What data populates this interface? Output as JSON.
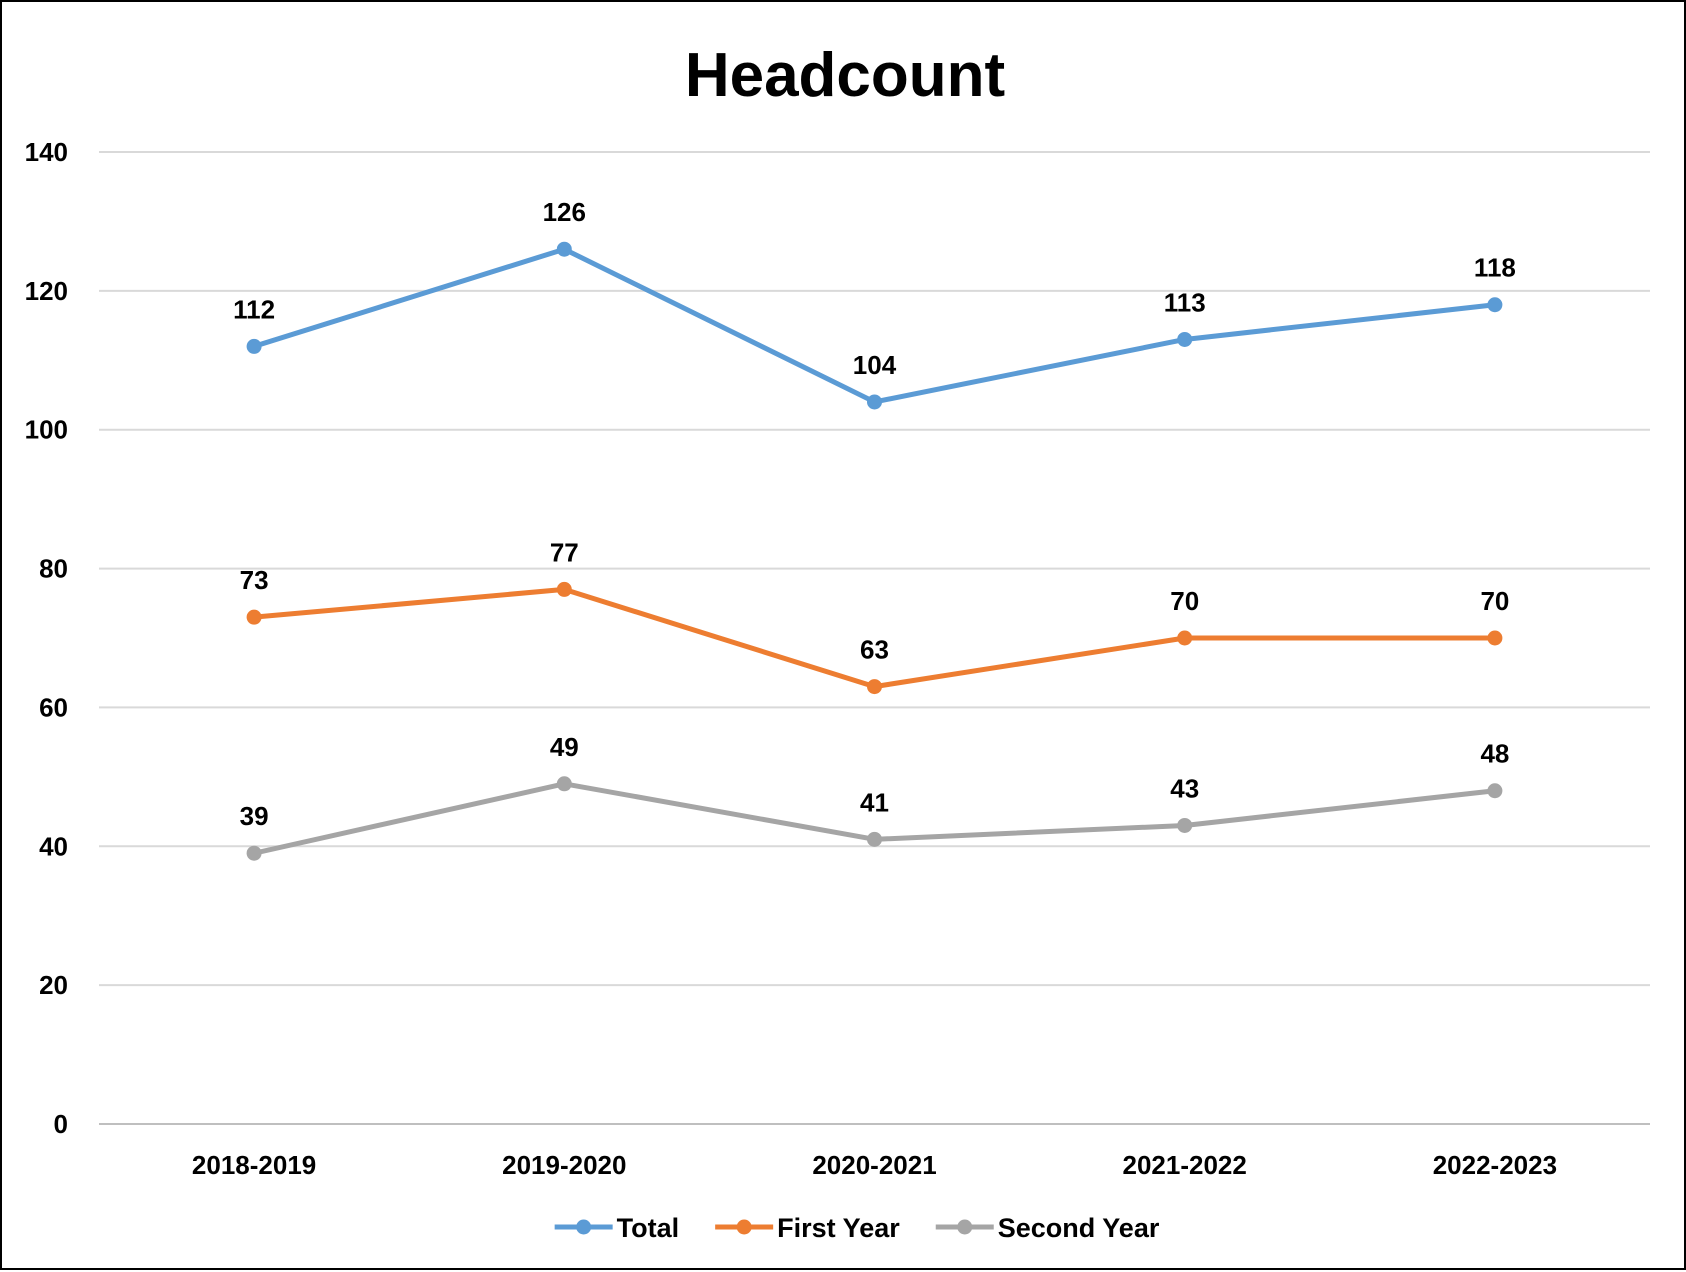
{
  "chart_data": {
    "type": "line",
    "title": "Headcount",
    "categories": [
      "2018-2019",
      "2019-2020",
      "2020-2021",
      "2021-2022",
      "2022-2023"
    ],
    "ylim": [
      0,
      140
    ],
    "yticks": [
      0,
      20,
      40,
      60,
      80,
      100,
      120,
      140
    ],
    "grid": true,
    "legend_position": "bottom",
    "series": [
      {
        "name": "Total",
        "color": "#5B9BD5",
        "values": [
          112,
          126,
          104,
          113,
          118
        ]
      },
      {
        "name": "First Year",
        "color": "#ED7D31",
        "values": [
          73,
          77,
          63,
          70,
          70
        ]
      },
      {
        "name": "Second Year",
        "color": "#A5A5A5",
        "values": [
          39,
          49,
          41,
          43,
          48
        ]
      }
    ]
  }
}
